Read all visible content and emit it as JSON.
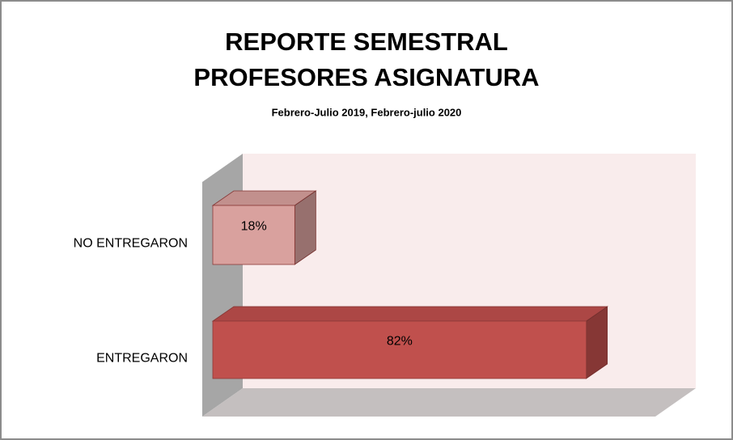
{
  "chart_data": {
    "type": "bar3d_horizontal",
    "title": "REPORTE SEMESTRAL PROFESORES ASIGNATURA",
    "subtitle": "Febrero-Julio 2019, Febrero-julio 2020",
    "categories": [
      "NO ENTREGARON",
      "ENTREGARON"
    ],
    "values": [
      18,
      82
    ],
    "value_labels": [
      "18%",
      "82%"
    ],
    "colors": [
      "#d9a19e",
      "#c0504d"
    ],
    "xlim": [
      0,
      100
    ]
  }
}
